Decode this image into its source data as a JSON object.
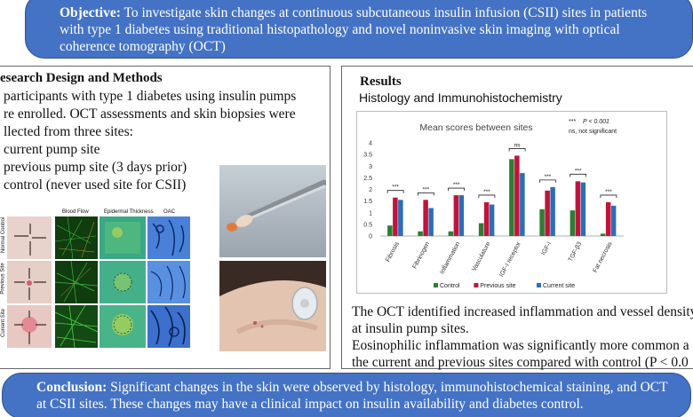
{
  "objective": {
    "label": "Objective:",
    "text": " To investigate skin changes at continuous subcutaneous insulin infusion (CSII) sites in patients with type 1 diabetes using traditional histopathology and novel noninvasive skin imaging with optical coherence tomography (OCT)"
  },
  "methods": {
    "heading": "esearch Design and Methods",
    "lines": [
      "participants with type 1 diabetes using insulin pumps",
      "re enrolled. OCT assessments and skin biopsies were",
      "llected from three sites:",
      "current pump site",
      "previous pump site (3 days prior)",
      "control (never used site for CSII)"
    ],
    "oct_columns": [
      "Blood Flow",
      "Epidermal Thickness",
      "OAC"
    ],
    "oct_rows": [
      "Normal Control",
      "Previous Site",
      "Current Site"
    ]
  },
  "results": {
    "heading": "Results",
    "subheading": "Histology and Immunohistochemistry",
    "findings": [
      "The OCT identified increased inflammation and vessel density",
      "at insulin pump sites.",
      "Eosinophilic inflammation was significantly more common a",
      "the current and previous sites compared with control (P < 0.0"
    ]
  },
  "conclusion": {
    "label": "Conclusion:",
    "text": " Significant changes in the skin were observed by histology, immunohistochemical staining, and OCT at CSII sites. These changes may have a clinical impact on insulin availability and diabetes control."
  },
  "chart_data": {
    "type": "bar",
    "title": "Mean scores between sites",
    "categories": [
      "Fibrosis",
      "Fibrinogen",
      "Inflammation",
      "Vasculature",
      "IGF-I receptor",
      "IGF-I",
      "TGF-β3",
      "Fat necrosis"
    ],
    "series": [
      {
        "name": "Control",
        "color": "#2e7d32",
        "values": [
          0.45,
          0.2,
          0.2,
          0.55,
          3.3,
          1.15,
          1.1,
          0.1
        ]
      },
      {
        "name": "Previous site",
        "color": "#c0143c",
        "values": [
          1.65,
          1.55,
          1.75,
          1.45,
          3.45,
          1.95,
          2.35,
          1.45
        ]
      },
      {
        "name": "Current site",
        "color": "#2e6db4",
        "values": [
          1.55,
          1.2,
          1.75,
          1.35,
          2.7,
          2.1,
          2.3,
          1.3
        ]
      }
    ],
    "significance": [
      "***",
      "***",
      "***",
      "***",
      "ns",
      "***",
      "***",
      "***"
    ],
    "ylim": [
      0,
      4
    ],
    "yticks": [
      "0",
      "0.5",
      "1",
      "1.5",
      "2",
      "2.5",
      "3",
      "3.5",
      "4"
    ],
    "key": {
      "stars": "***",
      "p": "P < 0.001",
      "ns": "ns, not significant"
    }
  }
}
